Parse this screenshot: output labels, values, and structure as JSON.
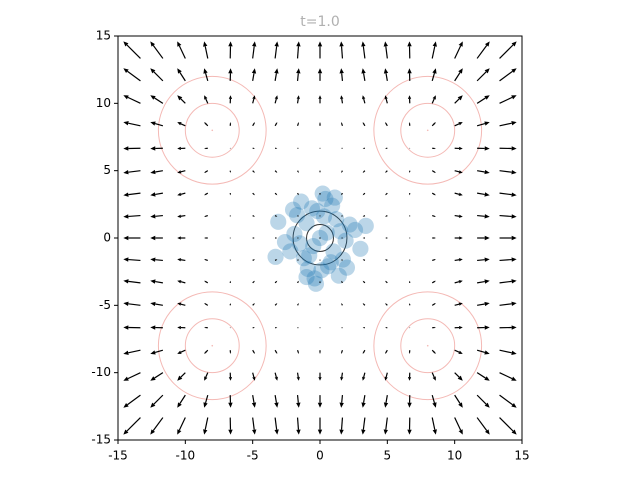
{
  "chart_data": {
    "type": "quiver",
    "title": "t=1.0",
    "title_color": "#b0b0b0",
    "xlim": [
      -15,
      15
    ],
    "ylim": [
      -15,
      15
    ],
    "xticks": [
      -15,
      -10,
      -5,
      0,
      5,
      10,
      15
    ],
    "yticks": [
      -15,
      -10,
      -5,
      0,
      5,
      10,
      15
    ],
    "quiver": {
      "color": "#000000",
      "x": [
        -15,
        -13.333,
        -11.667,
        -10,
        -8.333,
        -6.667,
        -5,
        -3.333,
        -1.667,
        0,
        1.667,
        3.333,
        5,
        6.667,
        8.333,
        10,
        11.667,
        13.333,
        15
      ],
      "y": [
        -15,
        -13.333,
        -11.667,
        -10,
        -8.333,
        -6.667,
        -5,
        -3.333,
        -1.667,
        0,
        1.667,
        3.333,
        5,
        6.667,
        8.333,
        10,
        11.667,
        13.333,
        15
      ],
      "u": [
        -1.2,
        -0.95,
        -0.7,
        -0.45,
        -0.2,
        0.02,
        0.12,
        0.12,
        0.07,
        0,
        -0.07,
        -0.12,
        -0.12,
        -0.02,
        0.2,
        0.45,
        0.7,
        0.95,
        1.2
      ],
      "v": [
        -1.2,
        -0.95,
        -0.7,
        -0.45,
        -0.2,
        0.02,
        0.12,
        0.12,
        0.07,
        0,
        -0.07,
        -0.12,
        -0.12,
        -0.02,
        0.2,
        0.45,
        0.7,
        0.95,
        1.2
      ]
    },
    "contours": [
      {
        "x": -8,
        "y": 8,
        "radii": [
          2,
          4
        ],
        "color": "#f4b9b5"
      },
      {
        "x": 8,
        "y": 8,
        "radii": [
          2,
          4
        ],
        "color": "#f4b9b5"
      },
      {
        "x": -8,
        "y": -8,
        "radii": [
          2,
          4
        ],
        "color": "#f4b9b5"
      },
      {
        "x": 8,
        "y": -8,
        "radii": [
          2,
          4
        ],
        "color": "#f4b9b5"
      },
      {
        "x": 0,
        "y": 0,
        "radii": [
          1,
          2
        ],
        "color": "#333333"
      }
    ],
    "scatter": {
      "color": "#1f77b4",
      "x": [
        0,
        0.5,
        -0.5,
        1,
        -1,
        0.3,
        -0.8,
        1.5,
        -1.5,
        0.8,
        -0.2,
        1.9,
        -1.9,
        1.2,
        -1.2,
        0.6,
        -0.6,
        2.2,
        -2.2,
        0.1,
        1.7,
        -1.7,
        0.9,
        -0.9,
        2.6,
        -2.6,
        0.4,
        -0.4,
        3.0,
        -3.1,
        1.4,
        -1.4,
        2.0,
        -2.0,
        0.2,
        -0.3,
        3.4,
        -3.3,
        1.1,
        -1.0
      ],
      "y": [
        0,
        0.4,
        -0.6,
        -1,
        1.1,
        1.6,
        -1.3,
        0.5,
        -0.4,
        -1.8,
        2.0,
        -0.2,
        0.3,
        1.4,
        -1.5,
        -2.1,
        2.2,
        1.0,
        -1.0,
        -2.4,
        -1.6,
        1.7,
        2.4,
        -2.3,
        0.6,
        -0.3,
        2.9,
        -3.0,
        -0.8,
        1.2,
        -2.8,
        2.7,
        -2.2,
        2.1,
        3.3,
        -3.4,
        0.9,
        -1.4,
        3.0,
        -2.9
      ]
    }
  }
}
